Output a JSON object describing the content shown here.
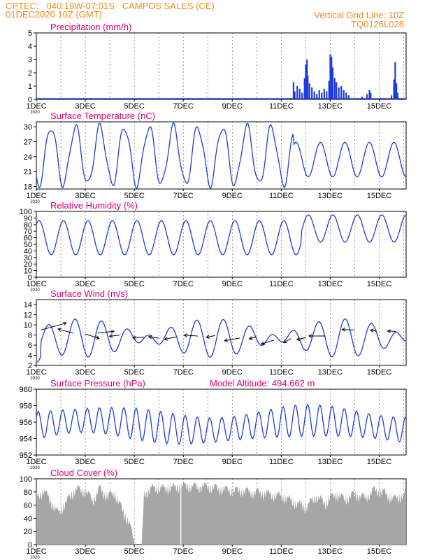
{
  "header": {
    "line1": "CPTEC:   040:19W-07:01S   CAMPOS SALES (CE)",
    "line2": "01DEC2020 10Z (GMT)",
    "grid_note": "Vertical Grid Line: 10Z",
    "code": "TQ0126L028",
    "header_color": "#f08a1e"
  },
  "colors": {
    "title": "#e0007a",
    "series": "#1f3bdc",
    "cloud": "#a6a6a6",
    "grid": "#000000"
  },
  "x_ticks": [
    "1DEC",
    "3DEC",
    "5DEC",
    "7DEC",
    "9DEC",
    "11DEC",
    "13DEC",
    "15DEC"
  ],
  "x_ticks_extra": "2020",
  "chart_data": [
    {
      "id": "precip",
      "type": "bar",
      "title": "Precipitation (mm/h)",
      "ylim": [
        0,
        5
      ],
      "yticks": [
        0,
        1,
        2,
        3,
        4,
        5
      ],
      "x_days": [
        0,
        15.1
      ],
      "series": [
        {
          "name": "Precipitation",
          "points": [
            [
              10.2,
              0.05
            ],
            [
              10.4,
              0.1
            ],
            [
              10.5,
              1.3
            ],
            [
              10.55,
              0.6
            ],
            [
              10.65,
              1.0
            ],
            [
              10.75,
              0.8
            ],
            [
              10.85,
              0.5
            ],
            [
              10.95,
              1.6
            ],
            [
              11.0,
              2.6
            ],
            [
              11.05,
              3.0
            ],
            [
              11.08,
              1.8
            ],
            [
              11.15,
              1.2
            ],
            [
              11.25,
              0.9
            ],
            [
              11.35,
              0.6
            ],
            [
              11.45,
              0.4
            ],
            [
              11.55,
              0.7
            ],
            [
              11.65,
              0.5
            ],
            [
              11.75,
              0.8
            ],
            [
              11.85,
              0.6
            ],
            [
              11.95,
              1.4
            ],
            [
              12.0,
              3.4
            ],
            [
              12.05,
              3.2
            ],
            [
              12.1,
              2.4
            ],
            [
              12.18,
              1.6
            ],
            [
              12.25,
              1.3
            ],
            [
              12.35,
              0.9
            ],
            [
              12.45,
              1.0
            ],
            [
              12.55,
              0.7
            ],
            [
              12.65,
              0.5
            ],
            [
              12.75,
              0.3
            ],
            [
              13.3,
              0.2
            ],
            [
              13.5,
              0.4
            ],
            [
              13.6,
              0.7
            ],
            [
              13.65,
              0.5
            ],
            [
              14.5,
              0.3
            ],
            [
              14.6,
              1.5
            ],
            [
              14.65,
              2.8
            ],
            [
              14.7,
              1.2
            ],
            [
              14.75,
              0.5
            ]
          ]
        }
      ]
    },
    {
      "id": "temp",
      "type": "line",
      "title": "Surface Temperature (nC)",
      "ylim": [
        17.5,
        31
      ],
      "yticks": [
        18,
        21,
        24,
        27,
        30
      ],
      "x_days": [
        0,
        15.1
      ],
      "series": [
        {
          "name": "Temperature",
          "base": 24.2,
          "amp": 5.8
        }
      ]
    },
    {
      "id": "rh",
      "type": "line",
      "title": "Relative Humidity (%)",
      "ylim": [
        0,
        100
      ],
      "yticks": [
        0,
        10,
        20,
        30,
        40,
        50,
        60,
        70,
        80,
        90,
        100
      ],
      "x_days": [
        0,
        15.1
      ],
      "series": [
        {
          "name": "Relative Humidity",
          "base": 60,
          "amp": 26
        }
      ]
    },
    {
      "id": "wind",
      "type": "line",
      "title": "Surface Wind (m/s)",
      "ylim": [
        2,
        15
      ],
      "yticks": [
        2,
        4,
        6,
        8,
        10,
        12,
        14
      ],
      "x_days": [
        0,
        15.1
      ],
      "series": [
        {
          "name": "Wind speed",
          "base": 7.4,
          "amp": 2.2
        }
      ],
      "arrows": [
        {
          "day": 0.2,
          "y": 9.0,
          "dx": 2.0,
          "dy": 1.6
        },
        {
          "day": 1.5,
          "y": 8.4,
          "dx": -1.2,
          "dy": 0.9
        },
        {
          "day": 2.0,
          "y": 8.2,
          "dx": 1.1,
          "dy": -1.0
        },
        {
          "day": 2.5,
          "y": 8.4,
          "dx": 1.3,
          "dy": 0.4
        },
        {
          "day": 3.4,
          "y": 8.0,
          "dx": -0.8,
          "dy": -0.3
        },
        {
          "day": 4.4,
          "y": 7.6,
          "dx": -0.9,
          "dy": -0.2
        },
        {
          "day": 5.0,
          "y": 7.4,
          "dx": -0.8,
          "dy": 0.3
        },
        {
          "day": 5.7,
          "y": 7.6,
          "dx": -0.9,
          "dy": -0.5
        },
        {
          "day": 6.6,
          "y": 7.8,
          "dx": -1.1,
          "dy": 0.2
        },
        {
          "day": 7.3,
          "y": 7.9,
          "dx": -0.7,
          "dy": -0.4
        },
        {
          "day": 8.3,
          "y": 7.4,
          "dx": -1.2,
          "dy": -0.6
        },
        {
          "day": 9.0,
          "y": 7.6,
          "dx": -0.6,
          "dy": -0.4
        },
        {
          "day": 9.7,
          "y": 7.0,
          "dx": -1.0,
          "dy": -0.9
        },
        {
          "day": 10.4,
          "y": 7.3,
          "dx": -0.6,
          "dy": -0.9
        },
        {
          "day": 11.0,
          "y": 7.5,
          "dx": -0.7,
          "dy": -0.5
        },
        {
          "day": 11.8,
          "y": 7.8,
          "dx": -1.3,
          "dy": 0.0
        },
        {
          "day": 13.0,
          "y": 9.0,
          "dx": -1.0,
          "dy": 0.1
        },
        {
          "day": 13.9,
          "y": 8.8,
          "dx": -0.5,
          "dy": 0.2
        },
        {
          "day": 14.7,
          "y": 8.7,
          "dx": -0.7,
          "dy": 0.1
        }
      ]
    },
    {
      "id": "pres",
      "type": "line",
      "title": "Surface Pressure (hPa)",
      "subtitle": "Model Altitude: 494.662 m",
      "ylim": [
        952,
        960
      ],
      "yticks": [
        952,
        954,
        956,
        958,
        960
      ],
      "x_days": [
        0,
        15.1
      ],
      "series": [
        {
          "name": "Pressure",
          "base": 955.6,
          "amp": 1.7
        }
      ]
    },
    {
      "id": "cloud",
      "type": "area",
      "title": "Cloud Cover (%)",
      "ylim": [
        0,
        100
      ],
      "yticks": [
        0,
        20,
        40,
        60,
        80,
        100
      ],
      "x_days": [
        0,
        15.1
      ],
      "series": [
        {
          "name": "Cloud Cover",
          "segments": [
            [
              0,
              78
            ],
            [
              0.3,
              90
            ],
            [
              0.6,
              72
            ],
            [
              0.9,
              55
            ],
            [
              1.2,
              70
            ],
            [
              1.6,
              92
            ],
            [
              2.0,
              88
            ],
            [
              2.3,
              75
            ],
            [
              2.6,
              92
            ],
            [
              2.9,
              80
            ],
            [
              3.2,
              86
            ],
            [
              3.5,
              60
            ],
            [
              3.8,
              40
            ],
            [
              4.0,
              8
            ],
            [
              4.2,
              2
            ],
            [
              4.3,
              0
            ],
            [
              4.4,
              85
            ],
            [
              4.8,
              94
            ],
            [
              5.2,
              92
            ],
            [
              6.0,
              96
            ],
            [
              7.0,
              95
            ],
            [
              7.8,
              90
            ],
            [
              8.5,
              88
            ],
            [
              9.2,
              86
            ],
            [
              9.8,
              82
            ],
            [
              10.2,
              78
            ],
            [
              10.6,
              70
            ],
            [
              11.0,
              64
            ],
            [
              11.4,
              80
            ],
            [
              11.8,
              70
            ],
            [
              12.2,
              84
            ],
            [
              12.6,
              76
            ],
            [
              13.0,
              84
            ],
            [
              13.4,
              78
            ],
            [
              13.8,
              90
            ],
            [
              14.2,
              86
            ],
            [
              14.6,
              76
            ],
            [
              15.0,
              82
            ],
            [
              15.1,
              86
            ]
          ]
        }
      ]
    }
  ]
}
